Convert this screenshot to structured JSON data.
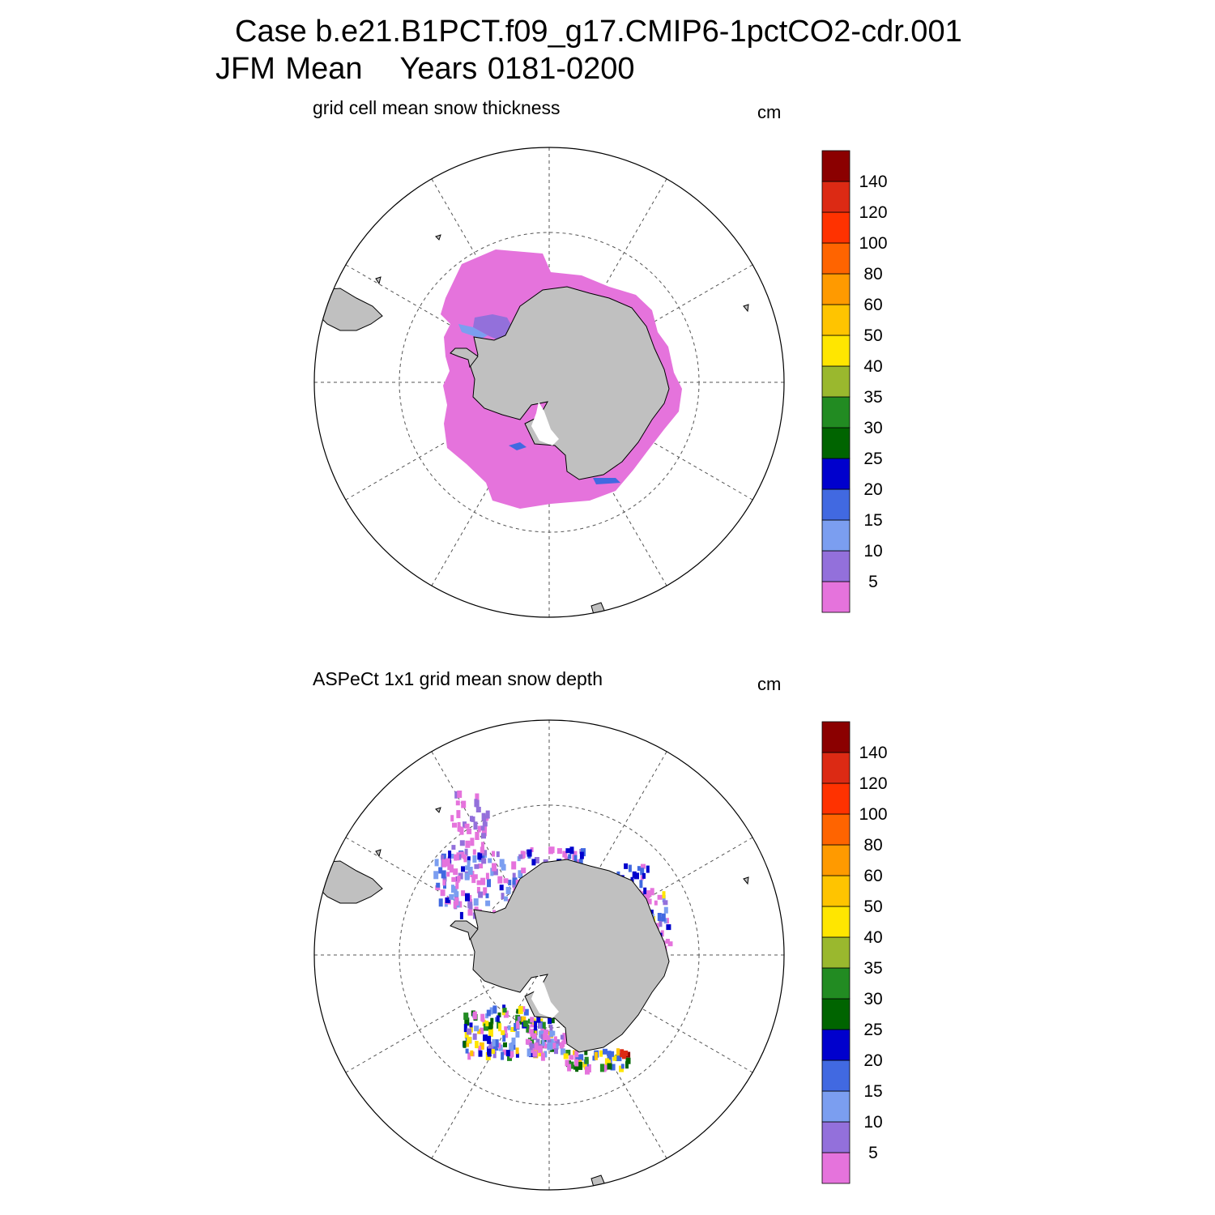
{
  "header": {
    "case_line": "Case b.e21.B1PCT.f09_g17.CMIP6-1pctCO2-cdr.001",
    "season": "JFM Mean",
    "years": "Years 0181-0200"
  },
  "colorbar": {
    "tick_labels": [
      "5",
      "10",
      "15",
      "20",
      "25",
      "30",
      "35",
      "40",
      "50",
      "60",
      "80",
      "100",
      "120",
      "140"
    ],
    "colors": [
      "#e573dc",
      "#9370db",
      "#7b9ef0",
      "#4169e1",
      "#0000cd",
      "#006400",
      "#228b22",
      "#9ab82e",
      "#ffe600",
      "#ffc400",
      "#ff9a00",
      "#ff6400",
      "#ff3200",
      "#dc2a14",
      "#8b0000"
    ]
  },
  "maps": [
    {
      "title": "grid cell mean snow thickness",
      "unit": "cm",
      "projection": "south-polar-stereographic",
      "land_color": "#c0c0c0",
      "dominant_class": "5"
    },
    {
      "title": "ASPeCt 1x1 grid mean snow depth",
      "unit": "cm",
      "projection": "south-polar-stereographic",
      "land_color": "#c0c0c0",
      "dominant_class": "mixed"
    }
  ]
}
